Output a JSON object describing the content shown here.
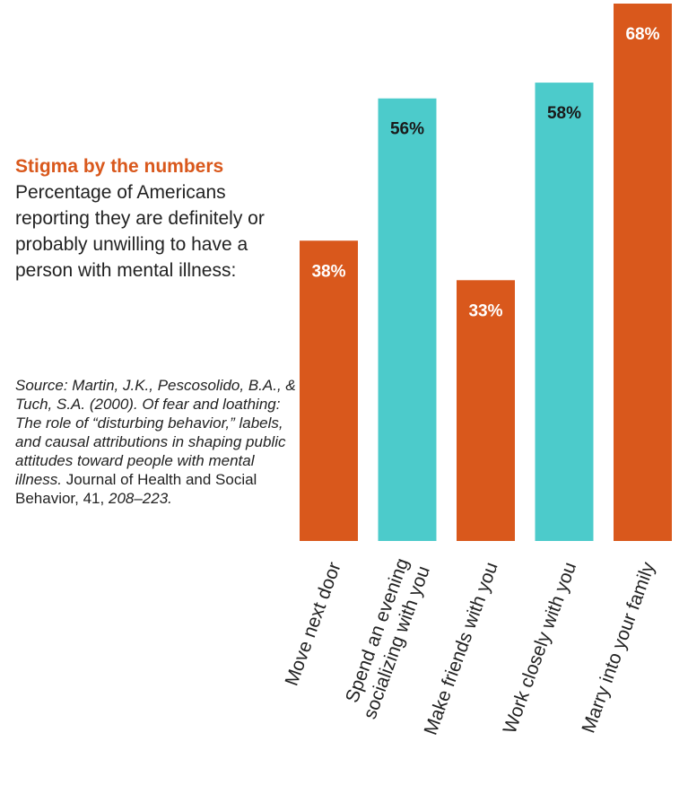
{
  "chart_data": {
    "type": "bar",
    "title": "Stigma by the numbers",
    "subtitle": "Percentage of Americans reporting they are definitely or probably unwilling to have a person with mental illness:",
    "categories": [
      "Move next door",
      "Spend an evening socializing with you",
      "Make friends with you",
      "Work closely with you",
      "Marry into your family"
    ],
    "category_lines": [
      [
        "Move next door"
      ],
      [
        "Spend an evening",
        "socializing with you"
      ],
      [
        "Make friends with you"
      ],
      [
        "Work closely with you"
      ],
      [
        "Marry into your family"
      ]
    ],
    "values": [
      38,
      56,
      33,
      58,
      68
    ],
    "labels": [
      "38%",
      "56%",
      "33%",
      "58%",
      "68%"
    ],
    "colors": [
      "#d9581c",
      "#4ccbcb",
      "#d9581c",
      "#4ccbcb",
      "#d9581c"
    ],
    "label_colors": [
      "#ffffff",
      "#1a1a1a",
      "#ffffff",
      "#1a1a1a",
      "#ffffff"
    ],
    "ylim": [
      0,
      68
    ],
    "xlabel": "",
    "ylabel": ""
  },
  "source": {
    "prefix": "Source: Martin, J.K., Pescosolido, B.A., & Tuch, S.A. (2000). Of fear and loathing: The role of “disturbing behavior,” labels, and causal attributions in shaping public attitudes toward people with mental illness.",
    "journal": "Journal of Health and Social Behavior, 41,",
    "pages": "208–223."
  }
}
